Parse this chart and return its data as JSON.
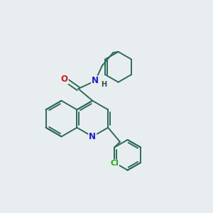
{
  "bg_color": "#e8eef0",
  "bond_color": "#2d6b58",
  "atom_colors": {
    "N": "#1a1acc",
    "O": "#cc1a1a",
    "Cl": "#22aa22",
    "H": "#444444",
    "C": "#2d6b58"
  },
  "line_width": 1.4,
  "font_size": 8.5,
  "figsize": [
    3.0,
    3.0
  ],
  "dpi": 100
}
